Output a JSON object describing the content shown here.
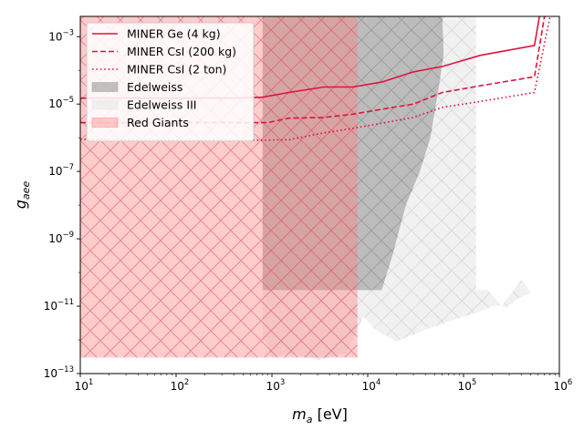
{
  "chart_data": {
    "type": "line",
    "xlabel": "m_a [eV]",
    "ylabel": "g_aee",
    "x_scale": "log",
    "y_scale": "log",
    "xlim": [
      10,
      1000000
    ],
    "ylim": [
      1e-13,
      0.004
    ],
    "x_ticks": [
      {
        "value": 10,
        "base": "10",
        "exp": "1"
      },
      {
        "value": 100,
        "base": "10",
        "exp": "2"
      },
      {
        "value": 1000,
        "base": "10",
        "exp": "3"
      },
      {
        "value": 10000,
        "base": "10",
        "exp": "4"
      },
      {
        "value": 100000,
        "base": "10",
        "exp": "5"
      },
      {
        "value": 1000000,
        "base": "10",
        "exp": "6"
      }
    ],
    "y_ticks": [
      {
        "value": 1e-13,
        "base": "10",
        "exp": "−13"
      },
      {
        "value": 1e-11,
        "base": "10",
        "exp": "−11"
      },
      {
        "value": 1e-09,
        "base": "10",
        "exp": "−9"
      },
      {
        "value": 1e-07,
        "base": "10",
        "exp": "−7"
      },
      {
        "value": 1e-05,
        "base": "10",
        "exp": "−5"
      },
      {
        "value": 0.001,
        "base": "10",
        "exp": "−3"
      }
    ],
    "legend_position": "upper-left",
    "series": [
      {
        "name": "MINER Ge (4 kg)",
        "kind": "line",
        "style": "solid",
        "color": "#dc143c",
        "points": [
          [
            10,
            1.5e-05
          ],
          [
            100,
            1.5e-05
          ],
          [
            400,
            1.5e-05
          ],
          [
            800,
            1.6e-05
          ],
          [
            1500,
            2.2e-05
          ],
          [
            3500,
            3.2e-05
          ],
          [
            7000,
            3.2e-05
          ],
          [
            14000,
            4.5e-05
          ],
          [
            30000,
            9e-05
          ],
          [
            60000,
            0.00013
          ],
          [
            150000,
            0.00028
          ],
          [
            550000,
            0.00055
          ],
          [
            620000,
            0.004
          ]
        ]
      },
      {
        "name": "MINER CsI (200 kg)",
        "kind": "line",
        "style": "dashed",
        "color": "#dc143c",
        "points": [
          [
            10,
            2.8e-06
          ],
          [
            100,
            2.8e-06
          ],
          [
            500,
            2.8e-06
          ],
          [
            900,
            2.8e-06
          ],
          [
            1500,
            3.8e-06
          ],
          [
            3500,
            4e-06
          ],
          [
            7000,
            5e-06
          ],
          [
            14000,
            7e-06
          ],
          [
            30000,
            1e-05
          ],
          [
            60000,
            2.2e-05
          ],
          [
            150000,
            3.5e-05
          ],
          [
            550000,
            6.5e-05
          ],
          [
            700000,
            0.004
          ]
        ]
      },
      {
        "name": "MINER CsI (2 ton)",
        "kind": "line",
        "style": "dotted",
        "color": "#dc143c",
        "points": [
          [
            10,
            9e-07
          ],
          [
            100,
            8.5e-07
          ],
          [
            800,
            8.5e-07
          ],
          [
            1500,
            8.7e-07
          ],
          [
            3500,
            1.4e-06
          ],
          [
            7000,
            1.9e-06
          ],
          [
            14000,
            2.7e-06
          ],
          [
            30000,
            4e-06
          ],
          [
            60000,
            8e-06
          ],
          [
            150000,
            1.2e-05
          ],
          [
            550000,
            2.2e-05
          ],
          [
            800000,
            0.004
          ]
        ]
      },
      {
        "name": "Edelweiss",
        "kind": "area",
        "color": "#a0a0a0",
        "hatch": "x",
        "points": [
          [
            800,
            0.004
          ],
          [
            60000,
            0.004
          ],
          [
            62000,
            0.0003
          ],
          [
            55000,
            3e-05
          ],
          [
            45000,
            1e-06
          ],
          [
            35000,
            1e-07
          ],
          [
            25000,
            1e-08
          ],
          [
            18000,
            3e-10
          ],
          [
            14000,
            3e-11
          ],
          [
            8000,
            3e-11
          ],
          [
            800,
            3e-11
          ]
        ]
      },
      {
        "name": "Edelweiss III",
        "kind": "area",
        "color": "#e6e6e6",
        "hatch": "x",
        "points": [
          [
            800,
            0.004
          ],
          [
            135000,
            0.004
          ],
          [
            135000,
            3e-11
          ],
          [
            180000,
            3e-11
          ],
          [
            250000,
            1e-11
          ],
          [
            300000,
            2e-11
          ],
          [
            400000,
            6e-11
          ],
          [
            450000,
            4e-11
          ],
          [
            500000,
            2.5e-11
          ],
          [
            420000,
            2e-11
          ],
          [
            350000,
            1.5e-11
          ],
          [
            280000,
            9e-12
          ],
          [
            220000,
            1.1e-11
          ],
          [
            150000,
            7e-12
          ],
          [
            80000,
            4e-12
          ],
          [
            40000,
            2e-12
          ],
          [
            20000,
            9e-13
          ],
          [
            12000,
            2e-12
          ],
          [
            9000,
            5e-12
          ],
          [
            6000,
            4e-13
          ],
          [
            3000,
            2.5e-13
          ],
          [
            1500,
            4e-13
          ],
          [
            1000,
            3e-13
          ],
          [
            850,
            1e-12
          ],
          [
            800,
            1e-12
          ]
        ]
      },
      {
        "name": "Red Giants",
        "kind": "area",
        "color": "#ff8080",
        "hatch": "x",
        "points": [
          [
            10,
            0.004
          ],
          [
            7800,
            0.004
          ],
          [
            7800,
            3e-13
          ],
          [
            10,
            3e-13
          ]
        ]
      }
    ]
  }
}
